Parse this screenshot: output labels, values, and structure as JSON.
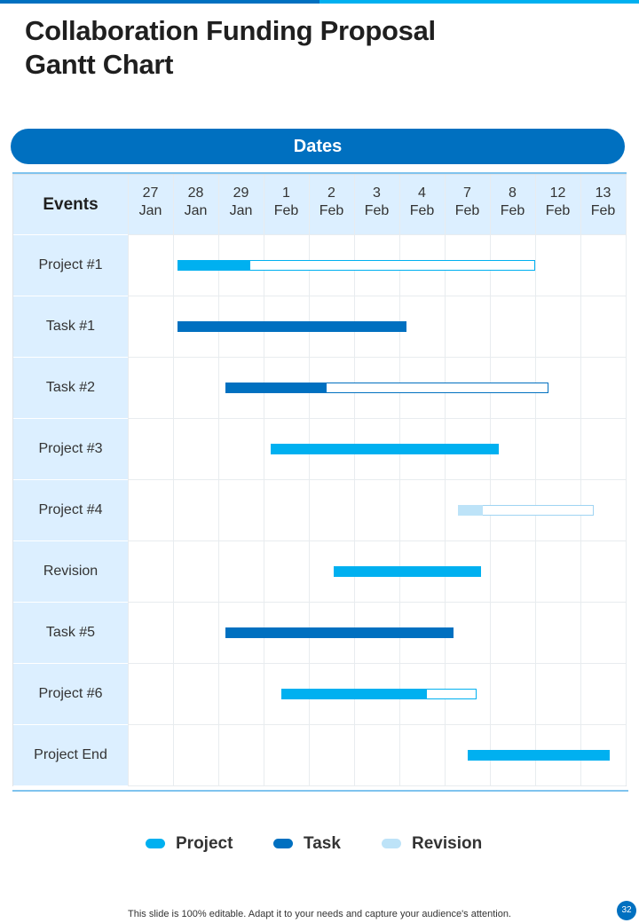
{
  "page": {
    "title_line1": "Collaboration Funding Proposal",
    "title_line2": "Gantt Chart",
    "footer": "This slide is 100% editable. Adapt it to your needs and capture your audience's attention.",
    "page_number": "32"
  },
  "colors": {
    "project": "#00b0f0",
    "task": "#0070c0",
    "revision": "#bde3f8",
    "header": "#0070c0",
    "label_bg": "#dcefff"
  },
  "chart_data": {
    "type": "gantt",
    "header_label": "Dates",
    "events_label": "Events",
    "dates": [
      {
        "day": "27",
        "month": "Jan"
      },
      {
        "day": "28",
        "month": "Jan"
      },
      {
        "day": "29",
        "month": "Jan"
      },
      {
        "day": "1",
        "month": "Feb"
      },
      {
        "day": "2",
        "month": "Feb"
      },
      {
        "day": "3",
        "month": "Feb"
      },
      {
        "day": "4",
        "month": "Feb"
      },
      {
        "day": "7",
        "month": "Feb"
      },
      {
        "day": "8",
        "month": "Feb"
      },
      {
        "day": "12",
        "month": "Feb"
      },
      {
        "day": "13",
        "month": "Feb"
      }
    ],
    "rows": [
      {
        "label": "Project #1",
        "kind": "project",
        "start": 1.1,
        "fill_end": 2.7,
        "end": 9.0
      },
      {
        "label": "Task #1",
        "kind": "task",
        "start": 1.1,
        "fill_end": 6.15,
        "end": 6.15
      },
      {
        "label": "Task #2",
        "kind": "task",
        "start": 2.15,
        "fill_end": 4.4,
        "end": 9.3
      },
      {
        "label": "Project #3",
        "kind": "project",
        "start": 3.15,
        "fill_end": 8.2,
        "end": 8.2
      },
      {
        "label": "Project #4",
        "kind": "revision",
        "start": 7.3,
        "fill_end": 7.85,
        "end": 10.3
      },
      {
        "label": "Revision",
        "kind": "project",
        "start": 4.55,
        "fill_end": 7.8,
        "end": 7.8
      },
      {
        "label": "Task #5",
        "kind": "task",
        "start": 2.15,
        "fill_end": 7.2,
        "end": 7.2
      },
      {
        "label": "Project #6",
        "kind": "project",
        "start": 3.4,
        "fill_end": 6.6,
        "end": 7.7
      },
      {
        "label": "Project End",
        "kind": "project",
        "start": 7.5,
        "fill_end": 10.65,
        "end": 10.65
      }
    ],
    "legend": [
      {
        "label": "Project",
        "kind": "project"
      },
      {
        "label": "Task",
        "kind": "task"
      },
      {
        "label": "Revision",
        "kind": "revision"
      }
    ]
  }
}
